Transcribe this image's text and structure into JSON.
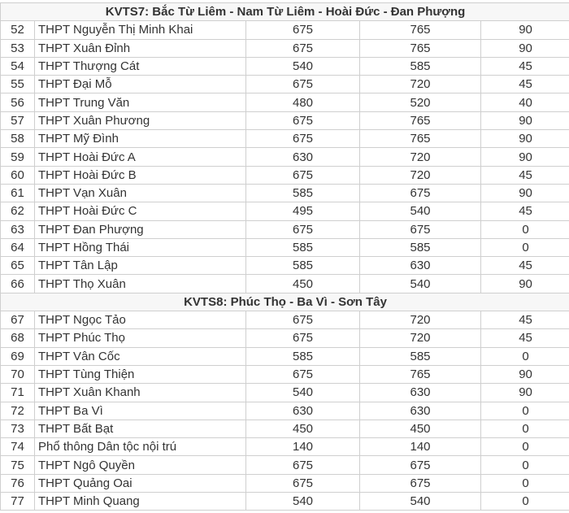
{
  "sections": [
    {
      "title": "KVTS7: Bắc Từ Liêm - Nam Từ Liêm - Hoài Đức - Đan Phượng",
      "rows": [
        [
          "52",
          "THPT Nguyễn Thị Minh Khai",
          "675",
          "765",
          "90"
        ],
        [
          "53",
          "THPT Xuân Đỉnh",
          "675",
          "765",
          "90"
        ],
        [
          "54",
          "THPT Thượng Cát",
          "540",
          "585",
          "45"
        ],
        [
          "55",
          "THPT Đại Mỗ",
          "675",
          "720",
          "45"
        ],
        [
          "56",
          "THPT Trung Văn",
          "480",
          "520",
          "40"
        ],
        [
          "57",
          "THPT Xuân Phương",
          "675",
          "765",
          "90"
        ],
        [
          "58",
          "THPT Mỹ Đình",
          "675",
          "765",
          "90"
        ],
        [
          "59",
          "THPT Hoài Đức A",
          "630",
          "720",
          "90"
        ],
        [
          "60",
          "THPT Hoài Đức B",
          "675",
          "720",
          "45"
        ],
        [
          "61",
          "THPT Vạn Xuân",
          "585",
          "675",
          "90"
        ],
        [
          "62",
          "THPT Hoài Đức C",
          "495",
          "540",
          "45"
        ],
        [
          "63",
          "THPT Đan Phượng",
          "675",
          "675",
          "0"
        ],
        [
          "64",
          "THPT Hồng Thái",
          "585",
          "585",
          "0"
        ],
        [
          "65",
          "THPT Tân Lập",
          "585",
          "630",
          "45"
        ],
        [
          "66",
          "THPT Thọ Xuân",
          "450",
          "540",
          "90"
        ]
      ]
    },
    {
      "title": "KVTS8: Phúc Thọ - Ba Vì - Sơn Tây",
      "rows": [
        [
          "67",
          "THPT Ngọc Tảo",
          "675",
          "720",
          "45"
        ],
        [
          "68",
          "THPT Phúc Thọ",
          "675",
          "720",
          "45"
        ],
        [
          "69",
          "THPT Vân Cốc",
          "585",
          "585",
          "0"
        ],
        [
          "70",
          "THPT Tùng Thiện",
          "675",
          "765",
          "90"
        ],
        [
          "71",
          "THPT Xuân Khanh",
          "540",
          "630",
          "90"
        ],
        [
          "72",
          "THPT Ba Vì",
          "630",
          "630",
          "0"
        ],
        [
          "73",
          "THPT Bất Bạt",
          "450",
          "450",
          "0"
        ],
        [
          "74",
          "Phổ thông Dân tộc nội trú",
          "140",
          "140",
          "0"
        ],
        [
          "75",
          "THPT Ngô Quyền",
          "675",
          "675",
          "0"
        ],
        [
          "76",
          "THPT Quảng Oai",
          "675",
          "675",
          "0"
        ],
        [
          "77",
          "THPT Minh Quang",
          "540",
          "540",
          "0"
        ]
      ]
    }
  ]
}
